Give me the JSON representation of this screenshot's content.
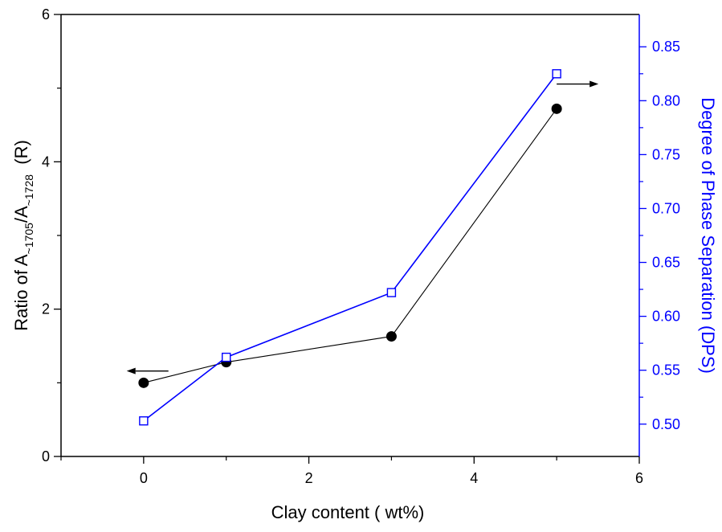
{
  "chart_data": {
    "type": "line",
    "xlabel": "Clay content ( wt%)",
    "ylabel_left": {
      "prefix": "Ratio of A",
      "sub1": "~1705",
      "mid": "/A",
      "sub2": "~1728",
      "suffix": "  (R)"
    },
    "ylabel_right": "Degree of Phase Separation (DPS)",
    "xlim": [
      -1,
      6
    ],
    "ylim_left": [
      0,
      6
    ],
    "ylim_right": [
      0.47,
      0.88
    ],
    "x_ticks": [
      0,
      2,
      4,
      6
    ],
    "x_tick_labels": [
      "0",
      "2",
      "4",
      "6"
    ],
    "y_left_ticks": [
      0,
      2,
      4,
      6
    ],
    "y_left_tick_labels": [
      "0",
      "2",
      "4",
      "6"
    ],
    "y_right_ticks": [
      0.5,
      0.55,
      0.6,
      0.65,
      0.7,
      0.75,
      0.8,
      0.85
    ],
    "y_right_tick_labels": [
      "0.50",
      "0.55",
      "0.60",
      "0.65",
      "0.70",
      "0.75",
      "0.80",
      "0.85"
    ],
    "grid": false,
    "series": [
      {
        "axis": "left",
        "x": [
          0,
          1,
          3,
          5
        ],
        "values": [
          1.0,
          1.28,
          1.63,
          4.72
        ],
        "color": "#000000",
        "marker": "filled-circle"
      },
      {
        "axis": "right",
        "x": [
          0,
          1,
          3,
          5
        ],
        "values": [
          0.503,
          0.562,
          0.622,
          0.825
        ],
        "color": "#0000ff",
        "marker": "open-square"
      }
    ],
    "annotations": [
      {
        "type": "arrow",
        "direction": "left",
        "axis": "left",
        "x": 0.3,
        "y": 1.16,
        "color": "#000000"
      },
      {
        "type": "arrow",
        "direction": "right",
        "axis": "right",
        "x": 5.0,
        "y": 0.8155,
        "color": "#000000"
      }
    ]
  }
}
